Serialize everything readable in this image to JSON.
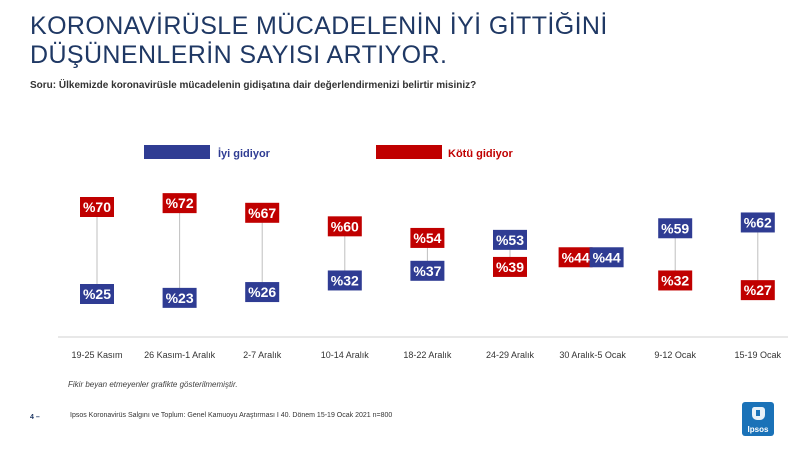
{
  "title_lines": [
    "KORONAVİRÜSLE MÜCADELENİN İYİ GİTTİĞİNİ",
    "DÜŞÜNENLERİN SAYISI ARTIYOR."
  ],
  "question": "Soru: Ülkemizde koronavirüsle mücadelenin gidişatına dair değerlendirmenizi belirtir misiniz?",
  "note": "Fikir beyan etmeyenler grafikte gösterilmemiştir.",
  "source": "Ipsos Koronavirüs Salgını ve Toplum: Genel Kamuoyu Araştırması I 40. Dönem 15-19 Ocak 2021 n=800",
  "page_number": "4 –",
  "logo_text": "Ipsos",
  "colors": {
    "good": "#2f3c93",
    "bad": "#c00000",
    "title": "#1f3864",
    "connector": "#bfbfbf"
  },
  "chart_data": {
    "type": "dot",
    "value_prefix": "%",
    "categories": [
      "19-25 Kasım",
      "26 Kasım-1 Aralık",
      "2-7 Aralık",
      "10-14 Aralık",
      "18-22 Aralık",
      "24-29 Aralık",
      "30 Aralık-5 Ocak",
      "9-12 Ocak",
      "15-19 Ocak"
    ],
    "series": [
      {
        "name": "İyi gidiyor",
        "color": "#2f3c93",
        "values": [
          25,
          23,
          26,
          32,
          37,
          53,
          44,
          59,
          62
        ]
      },
      {
        "name": "Kötü gidiyor",
        "color": "#c00000",
        "values": [
          70,
          72,
          67,
          60,
          54,
          39,
          44,
          32,
          27
        ]
      }
    ],
    "legend": "top",
    "ylim": [
      20,
      75
    ],
    "grid": false
  }
}
